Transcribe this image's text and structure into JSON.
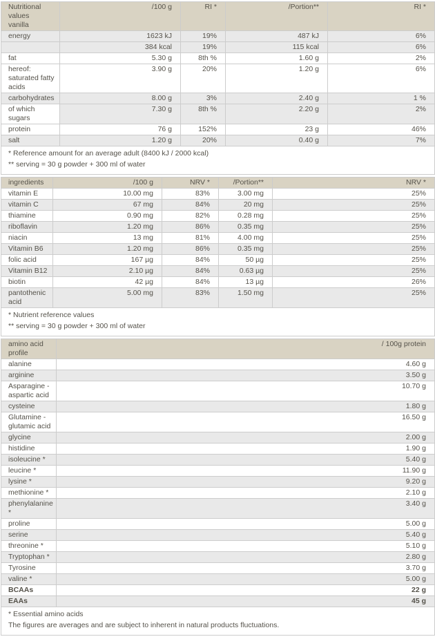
{
  "theme": {
    "header_bg": "#d9d3c3",
    "row_alt_bg": "#e9e9e9",
    "row_bg": "#ffffff",
    "border_color": "#cccccc",
    "text_color": "#55524a"
  },
  "tables": [
    {
      "title": "Nutritional values vanilla",
      "columns": [
        "/100 g",
        "RI *",
        "/Portion**",
        "RI *"
      ],
      "rows": [
        {
          "label": "energy",
          "values": [
            "1623 kJ",
            "19%",
            "487 kJ",
            "6%"
          ],
          "shade": "gray"
        },
        {
          "label": "",
          "values": [
            "384 kcal",
            "19%",
            "115 kcal",
            "6%"
          ],
          "shade": "gray"
        },
        {
          "label": "fat",
          "values": [
            "5.30 g",
            "8th %",
            "1.60 g",
            "2%"
          ],
          "shade": "white"
        },
        {
          "label": "hereof: saturated fatty acids",
          "values": [
            "3.90 g",
            "20%",
            "1.20 g",
            "6%"
          ],
          "shade": "white"
        },
        {
          "label": "carbohydrates",
          "values": [
            "8.00 g",
            "3%",
            "2.40 g",
            "1 %"
          ],
          "shade": "gray"
        },
        {
          "label": "of which sugars",
          "values": [
            "7.30 g",
            "8th %",
            "2.20 g",
            "2%"
          ],
          "shade": "gray",
          "label_shade": "white"
        },
        {
          "label": "protein",
          "values": [
            "76 g",
            "152%",
            "23 g",
            "46%"
          ],
          "shade": "white"
        },
        {
          "label": "salt",
          "values": [
            "1.20 g",
            "20%",
            "0.40 g",
            "7%"
          ],
          "shade": "gray"
        }
      ],
      "footnotes": [
        "* Reference amount for an average adult (8400 kJ / 2000 kcal)",
        "** serving = 30 g powder + 300 ml of water"
      ]
    },
    {
      "title": "ingredients",
      "columns": [
        "/100 g",
        "NRV *",
        "/Portion**",
        "NRV *"
      ],
      "rows": [
        {
          "label": "vitamin E",
          "values": [
            "10.00 mg",
            "83%",
            "3.00 mg",
            "25%"
          ],
          "shade": "white"
        },
        {
          "label": "vitamin C",
          "values": [
            "67 mg",
            "84%",
            "20 mg",
            "25%"
          ],
          "shade": "gray"
        },
        {
          "label": "thiamine",
          "values": [
            "0.90 mg",
            "82%",
            "0.28 mg",
            "25%"
          ],
          "shade": "white"
        },
        {
          "label": "riboflavin",
          "values": [
            "1.20 mg",
            "86%",
            "0.35 mg",
            "25%"
          ],
          "shade": "gray"
        },
        {
          "label": "niacin",
          "values": [
            "13 mg",
            "81%",
            "4.00 mg",
            "25%"
          ],
          "shade": "white"
        },
        {
          "label": "Vitamin B6",
          "values": [
            "1.20 mg",
            "86%",
            "0.35 mg",
            "25%"
          ],
          "shade": "gray"
        },
        {
          "label": "folic acid",
          "values": [
            "167 µg",
            "84%",
            "50 µg",
            "25%"
          ],
          "shade": "white"
        },
        {
          "label": "Vitamin B12",
          "values": [
            "2.10 µg",
            "84%",
            "0.63 µg",
            "25%"
          ],
          "shade": "gray"
        },
        {
          "label": "biotin",
          "values": [
            "42 µg",
            "84%",
            "13 µg",
            "26%"
          ],
          "shade": "white"
        },
        {
          "label": "pantothenic acid",
          "values": [
            "5.00 mg",
            "83%",
            "1.50 mg",
            "25%"
          ],
          "shade": "gray"
        }
      ],
      "footnotes": [
        "* Nutrient reference values",
        "** serving = 30 g powder + 300 ml of water"
      ]
    },
    {
      "title": "amino acid profile",
      "columns": [
        "/ 100g protein"
      ],
      "rows": [
        {
          "label": "alanine",
          "values": [
            "4.60 g"
          ],
          "shade": "white"
        },
        {
          "label": "arginine",
          "values": [
            "3.50 g"
          ],
          "shade": "gray"
        },
        {
          "label": "Asparagine - aspartic acid",
          "values": [
            "10.70 g"
          ],
          "shade": "white"
        },
        {
          "label": "cysteine",
          "values": [
            "1.80 g"
          ],
          "shade": "gray"
        },
        {
          "label": "Glutamine - glutamic acid",
          "values": [
            "16.50 g"
          ],
          "shade": "white"
        },
        {
          "label": "glycine",
          "values": [
            "2.00 g"
          ],
          "shade": "gray"
        },
        {
          "label": "histidine",
          "values": [
            "1.90 g"
          ],
          "shade": "white"
        },
        {
          "label": "isoleucine *",
          "values": [
            "5.40 g"
          ],
          "shade": "gray"
        },
        {
          "label": "leucine *",
          "values": [
            "11.90 g"
          ],
          "shade": "white"
        },
        {
          "label": "lysine *",
          "values": [
            "9.20 g"
          ],
          "shade": "gray"
        },
        {
          "label": "methionine *",
          "values": [
            "2.10 g"
          ],
          "shade": "white"
        },
        {
          "label": "phenylalanine *",
          "values": [
            "3.40 g"
          ],
          "shade": "gray"
        },
        {
          "label": "proline",
          "values": [
            "5.00 g"
          ],
          "shade": "white"
        },
        {
          "label": "serine",
          "values": [
            "5.40 g"
          ],
          "shade": "gray"
        },
        {
          "label": "threonine *",
          "values": [
            "5.10 g"
          ],
          "shade": "white"
        },
        {
          "label": "Tryptophan *",
          "values": [
            "2.80 g"
          ],
          "shade": "gray"
        },
        {
          "label": "Tyrosine",
          "values": [
            "3.70 g"
          ],
          "shade": "white"
        },
        {
          "label": "valine *",
          "values": [
            "5.00 g"
          ],
          "shade": "gray"
        },
        {
          "label": "BCAAs",
          "values": [
            "22 g"
          ],
          "shade": "white",
          "bold": true
        },
        {
          "label": "EAAs",
          "values": [
            "45 g"
          ],
          "shade": "gray",
          "bold": true
        }
      ],
      "footnotes": [
        "* Essential amino acids",
        "The figures are averages and are subject to inherent in natural products fluctuations."
      ]
    }
  ]
}
